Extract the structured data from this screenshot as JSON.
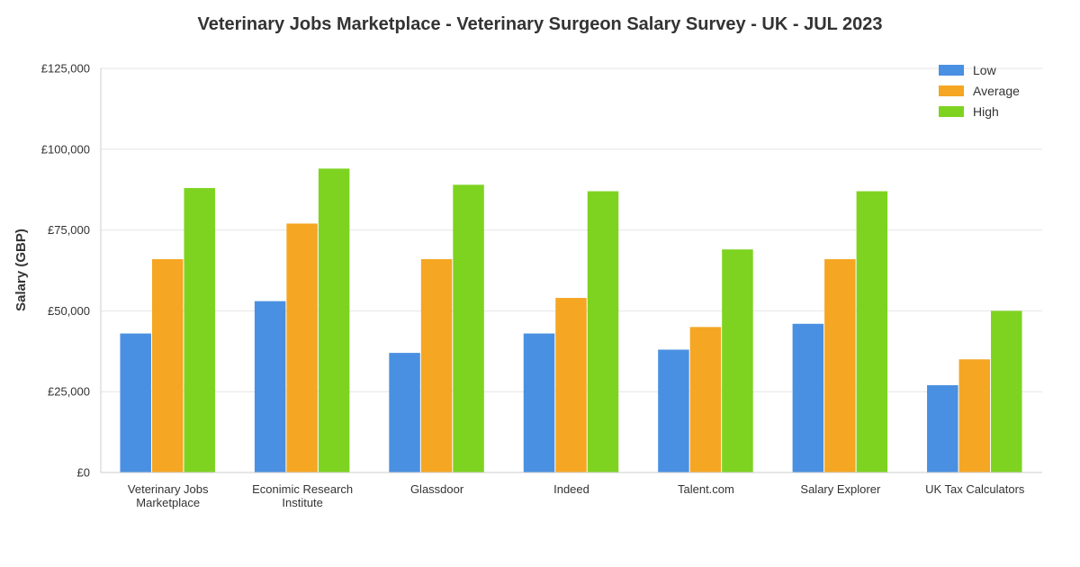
{
  "chart_data": {
    "type": "bar",
    "title": "Veterinary Jobs Marketplace - Veterinary Surgeon Salary Survey - UK - JUL 2023",
    "xlabel": "",
    "ylabel": "Salary (GBP)",
    "ylim": [
      0,
      125000
    ],
    "yticks": [
      0,
      25000,
      50000,
      75000,
      100000,
      125000
    ],
    "ytick_labels": [
      "£0",
      "£25,000",
      "£50,000",
      "£75,000",
      "£100,000",
      "£125,000"
    ],
    "grid": true,
    "legend_position": "top-right",
    "categories": [
      [
        "Veterinary Jobs",
        "Marketplace"
      ],
      [
        "Econimic Research",
        "Institute"
      ],
      [
        "Glassdoor"
      ],
      [
        "Indeed"
      ],
      [
        "Talent.com"
      ],
      [
        "Salary Explorer"
      ],
      [
        "UK Tax Calculators"
      ]
    ],
    "series": [
      {
        "name": "Low",
        "color": "#4a90e2",
        "values": [
          43000,
          53000,
          37000,
          43000,
          38000,
          46000,
          27000
        ]
      },
      {
        "name": "Average",
        "color": "#f5a623",
        "values": [
          66000,
          77000,
          66000,
          54000,
          45000,
          66000,
          35000
        ]
      },
      {
        "name": "High",
        "color": "#7ed321",
        "values": [
          88000,
          94000,
          89000,
          87000,
          69000,
          87000,
          50000
        ]
      }
    ]
  }
}
